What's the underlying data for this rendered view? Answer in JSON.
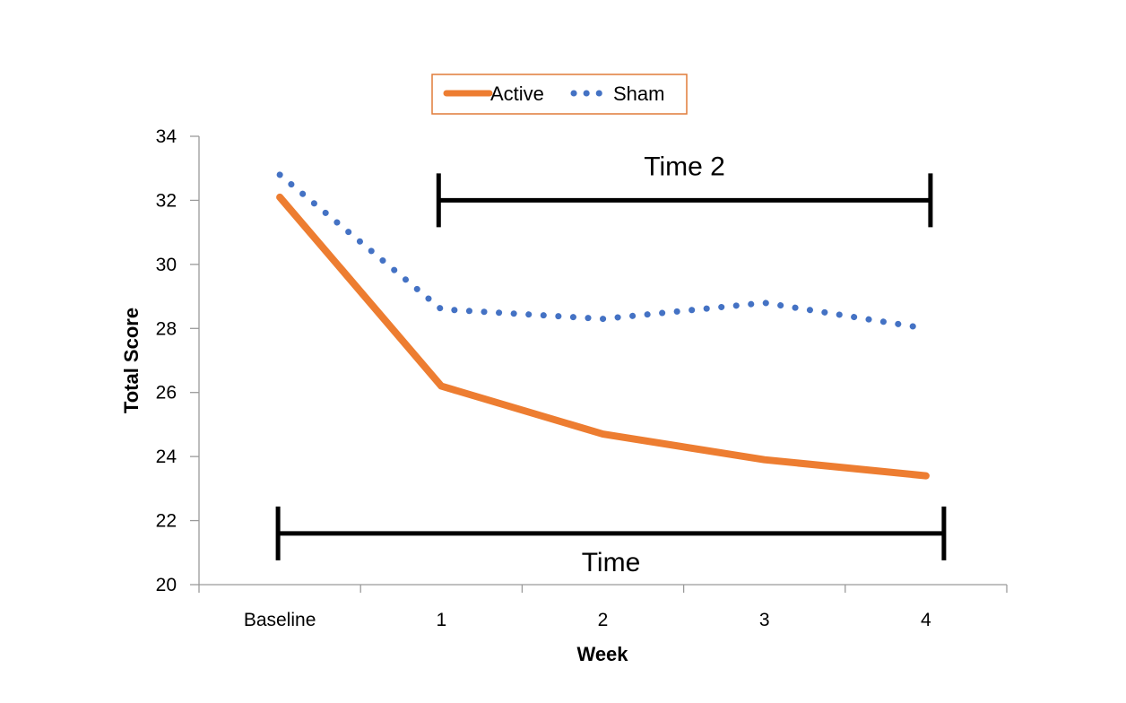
{
  "chart_data": {
    "type": "line",
    "xlabel": "Week",
    "ylabel": "Total Score",
    "categories": [
      "Baseline",
      "1",
      "2",
      "3",
      "4"
    ],
    "ylim": [
      20,
      34
    ],
    "yticks": [
      20,
      22,
      24,
      26,
      28,
      30,
      32,
      34
    ],
    "grid": false,
    "legend_position": "top-center",
    "series": [
      {
        "name": "Active",
        "values": [
          32.1,
          26.2,
          24.7,
          23.9,
          23.4
        ],
        "color": "#ed7d31",
        "style": "solid"
      },
      {
        "name": "Sham",
        "values": [
          32.8,
          28.6,
          28.3,
          28.8,
          28.0
        ],
        "color": "#4472c4",
        "style": "dotted"
      }
    ],
    "annotations": [
      {
        "label": "Time 2",
        "from": "1",
        "to": "4",
        "y": 32
      },
      {
        "label": "Time",
        "from": "Baseline",
        "to": "4",
        "y": 21.6
      }
    ]
  }
}
